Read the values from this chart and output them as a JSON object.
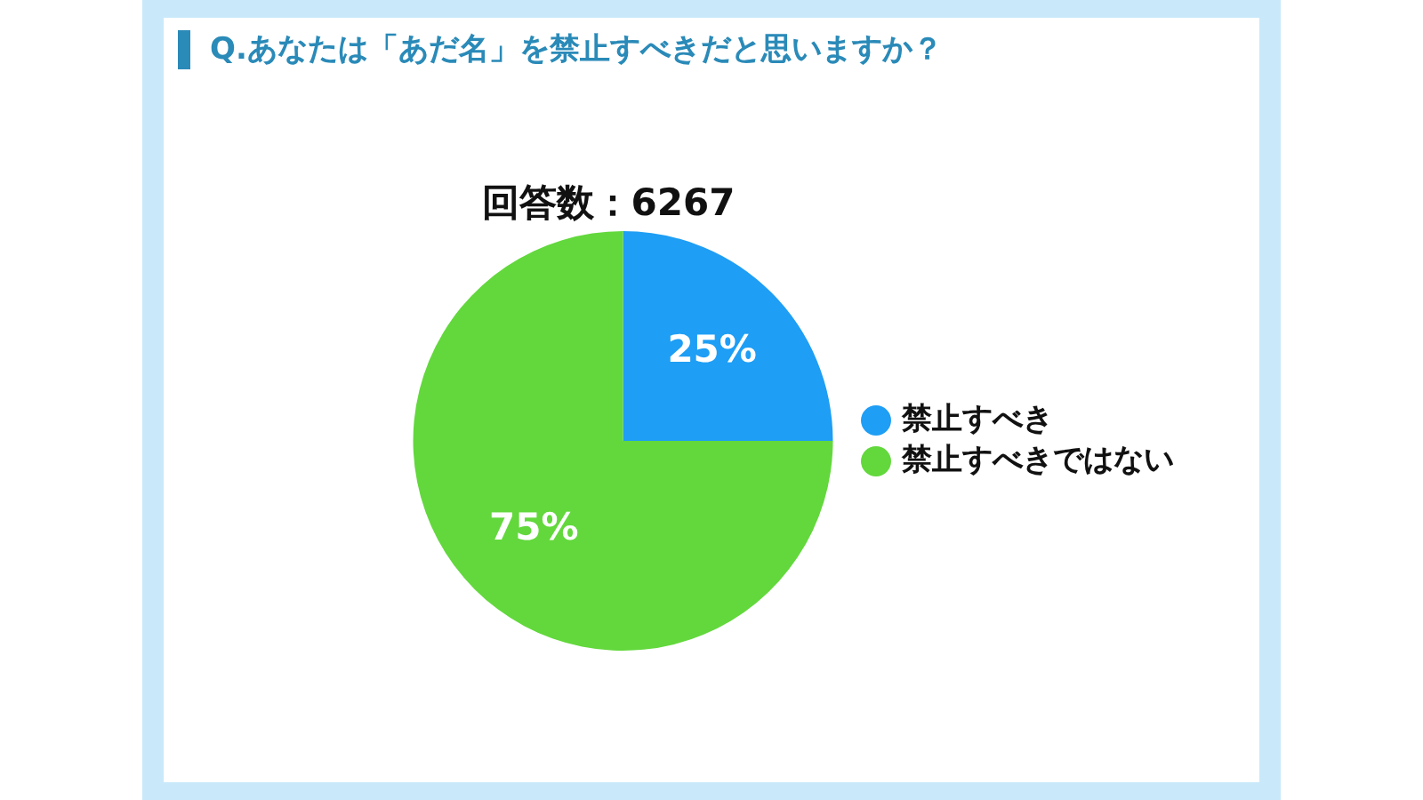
{
  "chart_data": {
    "type": "pie",
    "title": "Q.あなたは「あだ名」を禁止すべきだと思いますか？",
    "subtitle": "回答数：6267",
    "categories": [
      "禁止すべき",
      "禁止すべきではない"
    ],
    "values": [
      25,
      75
    ],
    "colors": [
      "#1e9ef5",
      "#62d83c"
    ],
    "value_labels": [
      "25%",
      "75%"
    ],
    "legend": "right"
  }
}
